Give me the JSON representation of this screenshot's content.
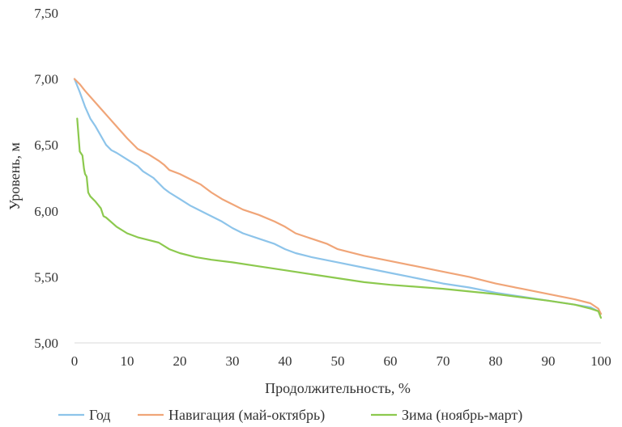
{
  "chart_data": {
    "type": "line",
    "title": "",
    "xlabel": "Продолжительность, %",
    "ylabel": "Уровень, м",
    "xlim": [
      0,
      100
    ],
    "ylim": [
      5.0,
      7.5
    ],
    "x_ticks": [
      0,
      10,
      20,
      30,
      40,
      50,
      60,
      70,
      80,
      90,
      100
    ],
    "y_ticks": [
      5.0,
      5.5,
      6.0,
      6.5,
      7.0,
      7.5
    ],
    "y_tick_labels": [
      "5,00",
      "5,50",
      "6,00",
      "6,50",
      "7,00",
      "7,50"
    ],
    "x_tick_labels": [
      "0",
      "10",
      "20",
      "30",
      "40",
      "50",
      "60",
      "70",
      "80",
      "90",
      "100"
    ],
    "grid": false,
    "legend_position": "bottom",
    "series": [
      {
        "name": "Год",
        "color": "#8dc4ea",
        "points": [
          [
            0,
            7.0
          ],
          [
            1,
            6.9
          ],
          [
            2,
            6.79
          ],
          [
            3,
            6.7
          ],
          [
            4,
            6.64
          ],
          [
            5,
            6.57
          ],
          [
            6,
            6.5
          ],
          [
            7,
            6.46
          ],
          [
            8,
            6.44
          ],
          [
            10,
            6.39
          ],
          [
            12,
            6.34
          ],
          [
            13,
            6.3
          ],
          [
            15,
            6.25
          ],
          [
            17,
            6.17
          ],
          [
            18,
            6.14
          ],
          [
            20,
            6.09
          ],
          [
            22,
            6.04
          ],
          [
            25,
            5.98
          ],
          [
            28,
            5.92
          ],
          [
            30,
            5.87
          ],
          [
            32,
            5.83
          ],
          [
            35,
            5.79
          ],
          [
            38,
            5.75
          ],
          [
            40,
            5.71
          ],
          [
            42,
            5.68
          ],
          [
            45,
            5.65
          ],
          [
            50,
            5.61
          ],
          [
            55,
            5.57
          ],
          [
            60,
            5.53
          ],
          [
            65,
            5.49
          ],
          [
            70,
            5.45
          ],
          [
            75,
            5.42
          ],
          [
            80,
            5.38
          ],
          [
            85,
            5.35
          ],
          [
            90,
            5.32
          ],
          [
            95,
            5.29
          ],
          [
            98,
            5.27
          ],
          [
            99.5,
            5.24
          ],
          [
            100,
            5.22
          ]
        ]
      },
      {
        "name": "Навигация (май-октябрь)",
        "color": "#f0a578",
        "points": [
          [
            0,
            7.0
          ],
          [
            1,
            6.96
          ],
          [
            2,
            6.91
          ],
          [
            4,
            6.82
          ],
          [
            6,
            6.73
          ],
          [
            8,
            6.64
          ],
          [
            10,
            6.55
          ],
          [
            12,
            6.47
          ],
          [
            14,
            6.43
          ],
          [
            16,
            6.38
          ],
          [
            17,
            6.35
          ],
          [
            18,
            6.31
          ],
          [
            20,
            6.28
          ],
          [
            22,
            6.24
          ],
          [
            24,
            6.2
          ],
          [
            26,
            6.14
          ],
          [
            28,
            6.09
          ],
          [
            30,
            6.05
          ],
          [
            32,
            6.01
          ],
          [
            35,
            5.97
          ],
          [
            38,
            5.92
          ],
          [
            40,
            5.88
          ],
          [
            42,
            5.83
          ],
          [
            45,
            5.79
          ],
          [
            48,
            5.75
          ],
          [
            50,
            5.71
          ],
          [
            55,
            5.66
          ],
          [
            60,
            5.62
          ],
          [
            65,
            5.58
          ],
          [
            70,
            5.54
          ],
          [
            75,
            5.5
          ],
          [
            80,
            5.45
          ],
          [
            85,
            5.41
          ],
          [
            90,
            5.37
          ],
          [
            95,
            5.33
          ],
          [
            98,
            5.3
          ],
          [
            99.5,
            5.26
          ],
          [
            100,
            5.22
          ]
        ]
      },
      {
        "name": "Зима (ноябрь-март)",
        "color": "#8cc94e",
        "points": [
          [
            0.5,
            6.7
          ],
          [
            0.8,
            6.55
          ],
          [
            1,
            6.45
          ],
          [
            1.5,
            6.42
          ],
          [
            1.8,
            6.32
          ],
          [
            2,
            6.28
          ],
          [
            2.3,
            6.26
          ],
          [
            2.6,
            6.14
          ],
          [
            3,
            6.11
          ],
          [
            4,
            6.07
          ],
          [
            5,
            6.02
          ],
          [
            5.5,
            5.96
          ],
          [
            6,
            5.95
          ],
          [
            8,
            5.88
          ],
          [
            10,
            5.83
          ],
          [
            12,
            5.8
          ],
          [
            14,
            5.78
          ],
          [
            16,
            5.76
          ],
          [
            18,
            5.71
          ],
          [
            20,
            5.68
          ],
          [
            23,
            5.65
          ],
          [
            26,
            5.63
          ],
          [
            30,
            5.61
          ],
          [
            35,
            5.58
          ],
          [
            40,
            5.55
          ],
          [
            45,
            5.52
          ],
          [
            50,
            5.49
          ],
          [
            55,
            5.46
          ],
          [
            60,
            5.44
          ],
          [
            70,
            5.41
          ],
          [
            80,
            5.37
          ],
          [
            90,
            5.32
          ],
          [
            95,
            5.29
          ],
          [
            98,
            5.26
          ],
          [
            99.5,
            5.24
          ],
          [
            100,
            5.19
          ]
        ]
      }
    ]
  }
}
